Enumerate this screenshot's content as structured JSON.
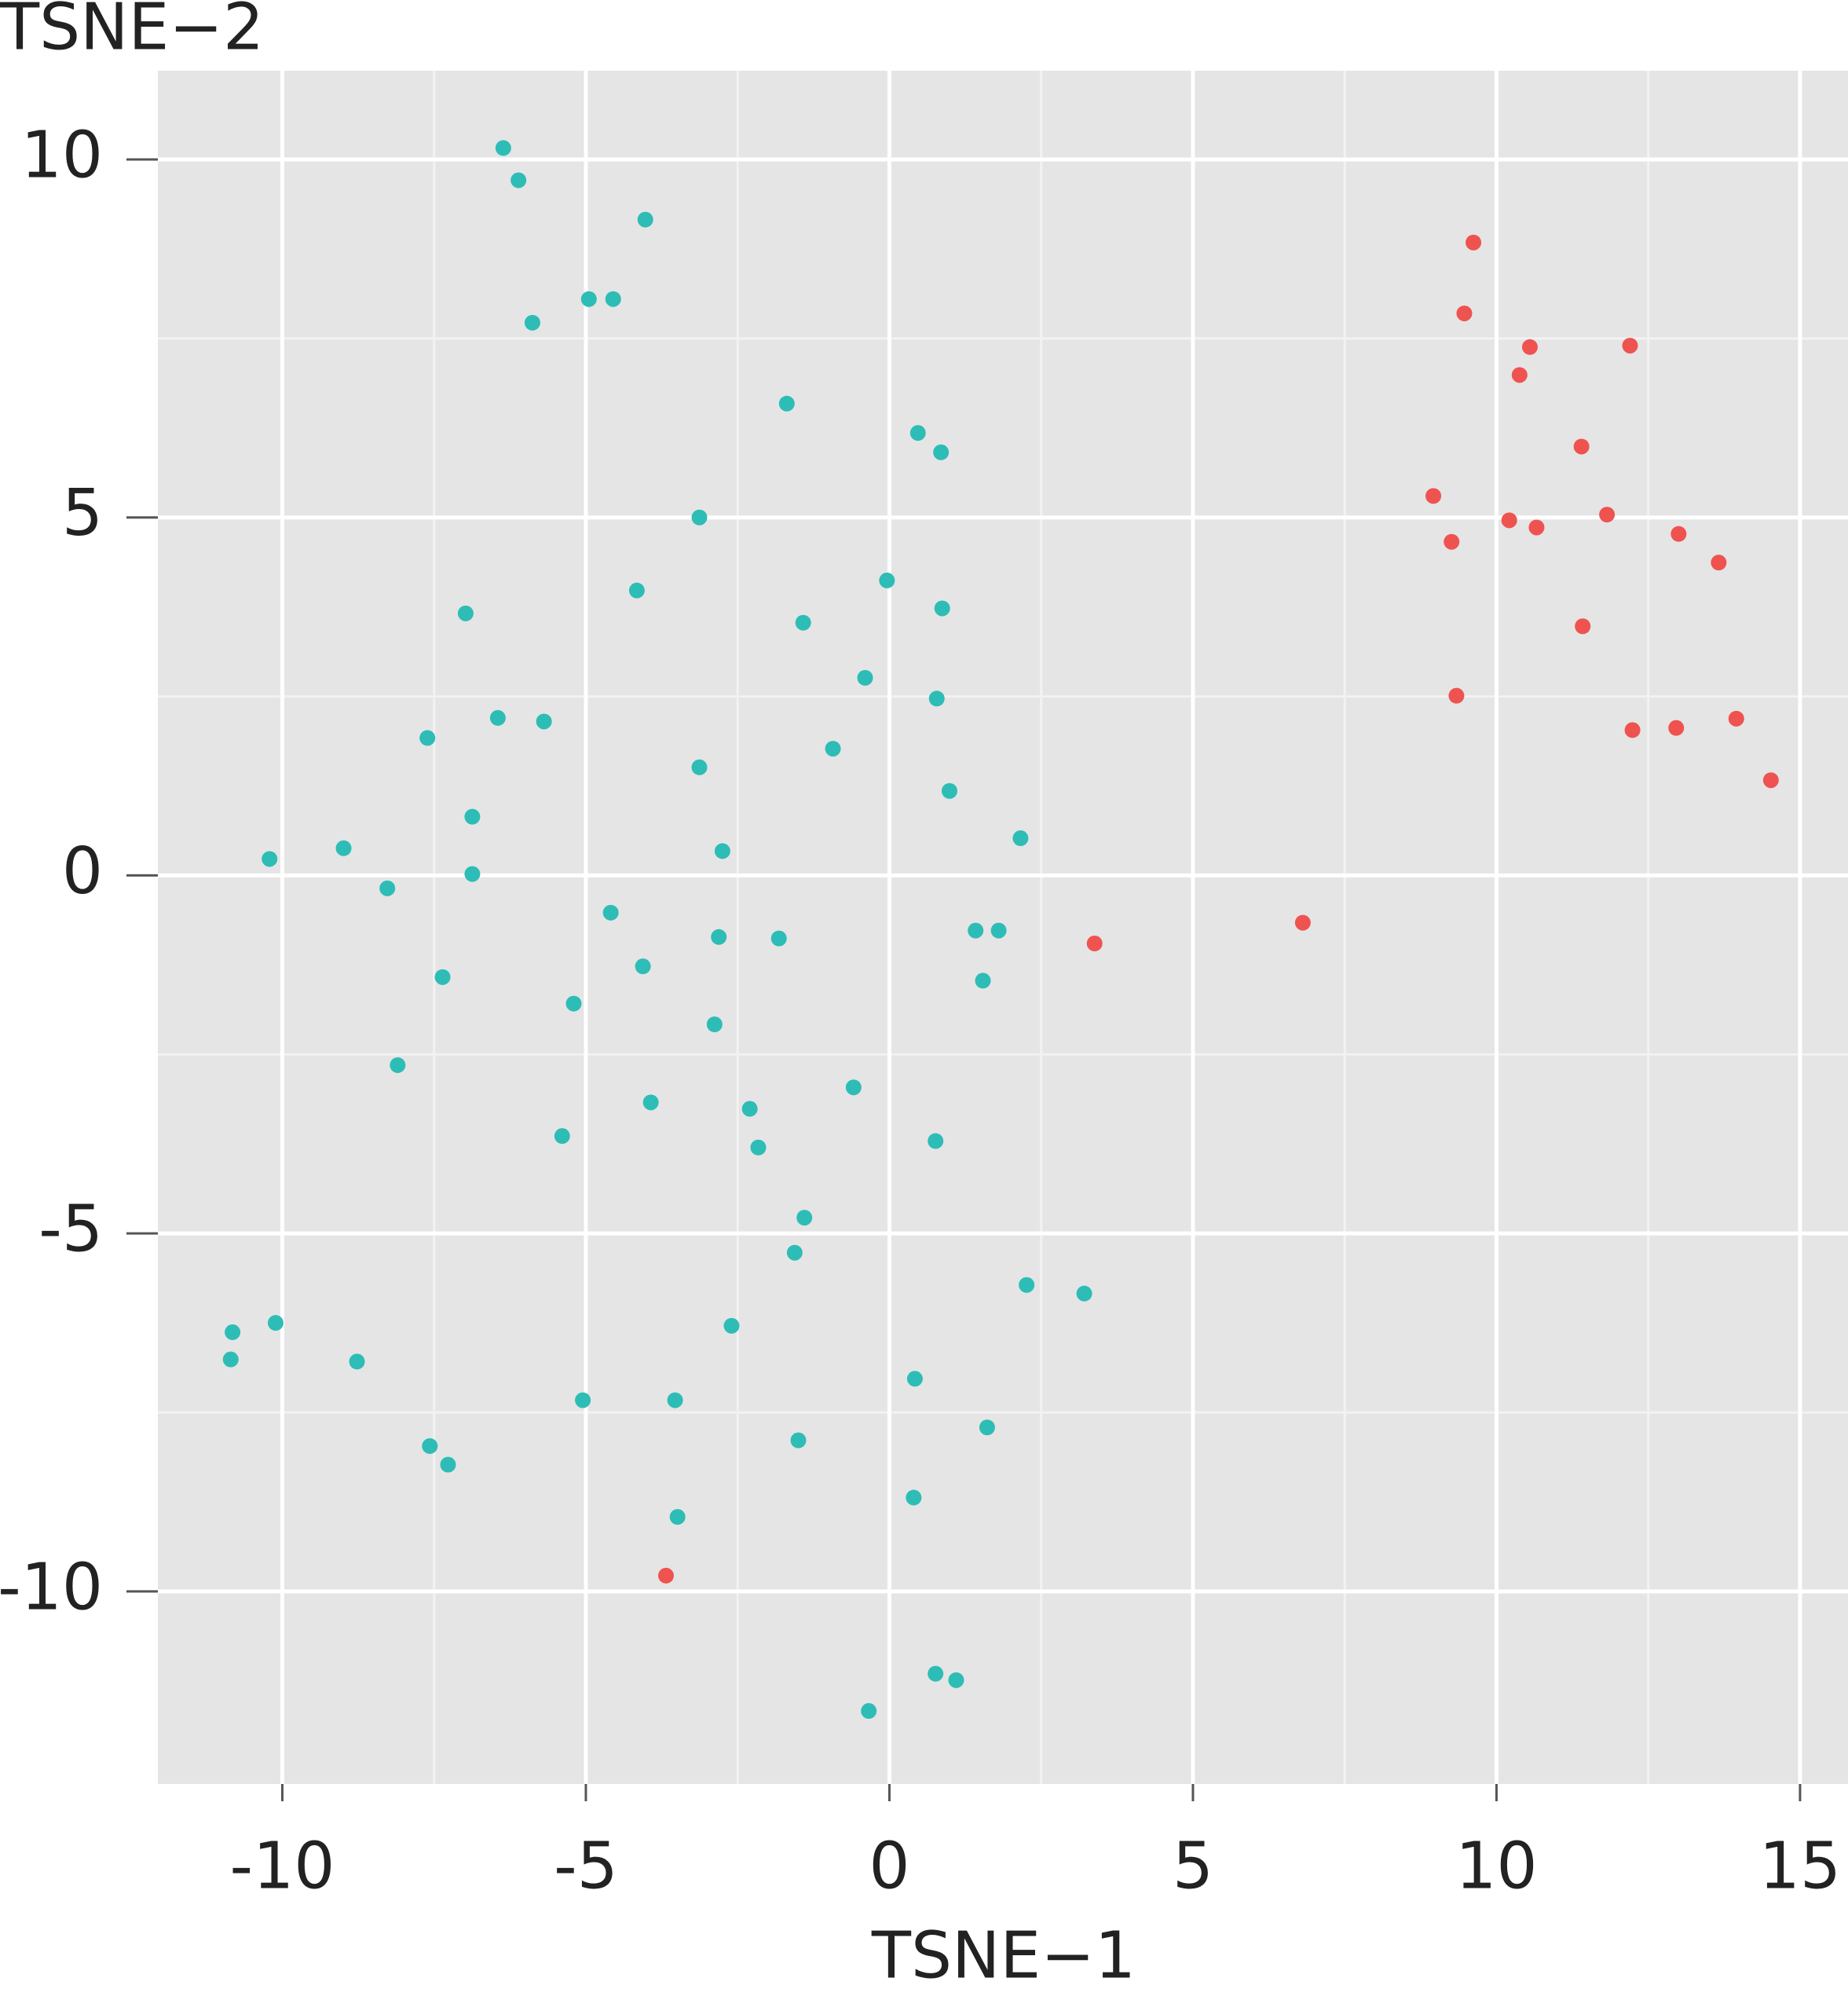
{
  "chart_data": {
    "type": "scatter",
    "x_label": "TSNE−1",
    "y_label": "TSNE−2",
    "xlim": [
      -12.05,
      15.79
    ],
    "ylim": [
      -12.69,
      11.24
    ],
    "xticks": [
      -10,
      -5,
      0,
      5,
      10,
      15
    ],
    "yticks": [
      -10,
      -5,
      0,
      5,
      10
    ],
    "grid": true,
    "minor_grid": true,
    "background": "#e5e5e5",
    "series": [
      {
        "color": "#2dbdb6",
        "x": [
          -6.36,
          -6.11,
          -4.02,
          -4.95,
          -4.55,
          -5.88,
          -1.69,
          0.47,
          0.85,
          -3.13,
          -4.16,
          -0.04,
          0.87,
          -1.42,
          -6.98,
          -0.4,
          0.78,
          -6.45,
          -5.69,
          -7.61,
          -0.93,
          -3.13,
          0.99,
          -6.87,
          -2.75,
          2.16,
          -10.21,
          -8.99,
          -8.27,
          -6.87,
          -4.59,
          -4.06,
          -2.81,
          -1.82,
          1.42,
          1.8,
          1.54,
          -7.36,
          -5.2,
          -2.88,
          -8.1,
          -3.93,
          -2.3,
          -0.59,
          -2.16,
          -5.39,
          0.76,
          -1.4,
          -1.56,
          2.26,
          3.21,
          -10.82,
          -10.11,
          -10.85,
          -8.77,
          -2.6,
          0.42,
          -5.05,
          -3.53,
          -1.5,
          1.61,
          -7.57,
          -7.27,
          0.4,
          -3.49,
          0.76,
          1.1,
          -0.34
        ],
        "values": [
          10.16,
          9.71,
          9.16,
          8.05,
          8.05,
          7.72,
          6.59,
          6.18,
          5.91,
          5.0,
          3.98,
          4.12,
          3.73,
          3.53,
          3.66,
          2.76,
          2.47,
          2.2,
          2.15,
          1.92,
          1.77,
          1.51,
          1.18,
          0.82,
          0.34,
          0.52,
          0.23,
          0.38,
          -0.18,
          0.02,
          -0.52,
          -1.27,
          -0.86,
          -0.88,
          -0.77,
          -0.77,
          -1.47,
          -1.42,
          -1.79,
          -2.08,
          -2.65,
          -3.17,
          -3.26,
          -2.96,
          -3.8,
          -3.64,
          -3.71,
          -4.78,
          -5.27,
          -5.72,
          -5.84,
          -6.38,
          -6.25,
          -6.76,
          -6.79,
          -6.29,
          -7.03,
          -7.33,
          -7.33,
          -7.89,
          -7.71,
          -7.97,
          -8.23,
          -8.69,
          -8.96,
          -11.15,
          -11.24,
          -11.67
        ]
      },
      {
        "color": "#ef5350",
        "x": [
          9.62,
          9.47,
          10.55,
          12.2,
          10.38,
          11.4,
          8.96,
          10.21,
          10.66,
          11.82,
          9.26,
          13.0,
          13.66,
          11.42,
          9.34,
          12.24,
          12.96,
          13.95,
          14.52,
          6.81,
          3.38,
          -3.68
        ],
        "values": [
          8.84,
          7.85,
          7.38,
          7.4,
          6.99,
          5.99,
          5.3,
          4.96,
          4.86,
          5.04,
          4.66,
          4.77,
          4.37,
          3.48,
          2.51,
          2.03,
          2.06,
          2.19,
          1.33,
          -0.66,
          -0.95,
          -9.78
        ]
      }
    ]
  }
}
